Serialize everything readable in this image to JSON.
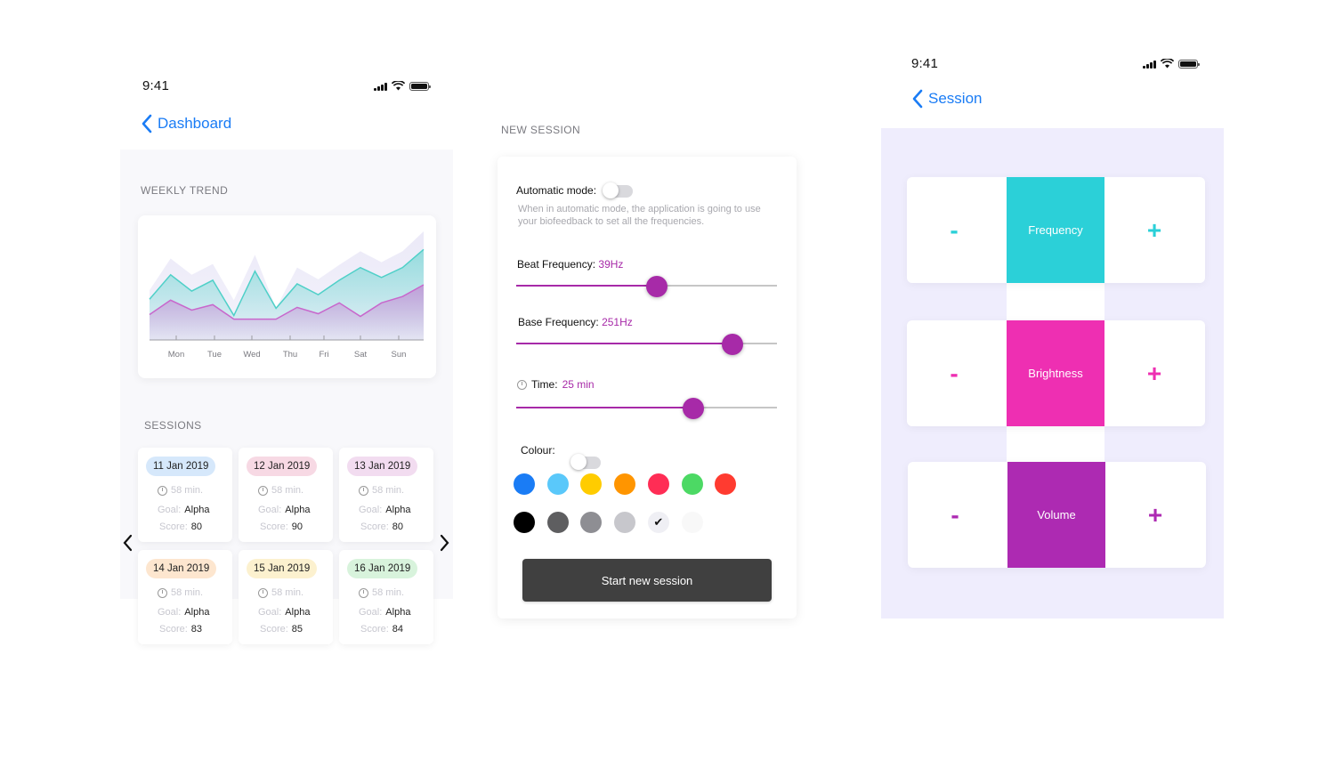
{
  "colors": {
    "accent_blue": "#1a7cf5",
    "purple": "#a72aa8",
    "cyan": "#2bd0d8",
    "magenta": "#ee2fb2",
    "dark_button": "#404040",
    "session_bg": "#efedfd"
  },
  "status": {
    "time": "9:41",
    "icons": [
      "signal-icon",
      "wifi-icon",
      "battery-icon"
    ]
  },
  "dashboard": {
    "back_label": "Dashboard",
    "weekly_title": "WEEKLY TREND",
    "sessions_title": "SESSIONS",
    "goal_label": "Goal:",
    "score_label": "Score:",
    "sessions": [
      {
        "date": "11 Jan 2019",
        "pill": "#d6e8fb",
        "duration": "58 min.",
        "goal": "Alpha",
        "score": "80"
      },
      {
        "date": "12 Jan 2019",
        "pill": "#f7d9e4",
        "duration": "58 min.",
        "goal": "Alpha",
        "score": "90"
      },
      {
        "date": "13 Jan 2019",
        "pill": "#f2dcf0",
        "duration": "58 min.",
        "goal": "Alpha",
        "score": "80"
      },
      {
        "date": "14 Jan 2019",
        "pill": "#fde6cf",
        "duration": "58 min.",
        "goal": "Alpha",
        "score": "83"
      },
      {
        "date": "15 Jan 2019",
        "pill": "#fcf1cf",
        "duration": "58 min.",
        "goal": "Alpha",
        "score": "85"
      },
      {
        "date": "16 Jan 2019",
        "pill": "#d8f3dc",
        "duration": "58 min.",
        "goal": "Alpha",
        "score": "84"
      }
    ]
  },
  "chart_data": {
    "type": "area",
    "categories": [
      "Mon",
      "Tue",
      "Wed",
      "Thu",
      "Fri",
      "Sat",
      "Sun"
    ],
    "x": [
      0,
      1,
      2,
      3,
      4,
      5,
      6,
      7,
      8,
      9,
      10,
      11,
      12,
      13
    ],
    "ylim": [
      0,
      120
    ],
    "grid": false,
    "series": [
      {
        "color": "#e9e7f7",
        "values": [
          55,
          90,
          72,
          84,
          44,
          94,
          35,
          80,
          67,
          83,
          98,
          86,
          98,
          120
        ]
      },
      {
        "color": "#4fd0c8",
        "values": [
          45,
          72,
          54,
          66,
          27,
          76,
          35,
          62,
          50,
          66,
          80,
          69,
          80,
          100
        ]
      },
      {
        "color": "#c867cc",
        "values": [
          28,
          44,
          33,
          39,
          23,
          23,
          23,
          36,
          29,
          41,
          26,
          41,
          48,
          61
        ]
      }
    ]
  },
  "new_session": {
    "title": "NEW SESSION",
    "auto_label": "Automatic mode:",
    "auto_on": false,
    "auto_hint": "When in automatic mode, the application is going to use your biofeedback to set all the frequencies.",
    "beat_label": "Beat Frequency:",
    "beat_value": "39Hz",
    "beat_level": 0.54,
    "base_label": "Base Frequency:",
    "base_value": "251Hz",
    "base_level": 0.83,
    "time_label": "Time:",
    "time_value": "25 min",
    "time_level": 0.68,
    "colour_label": "Colour:",
    "colour_on": false,
    "colours_row1": [
      "#1a7cf5",
      "#5ac8fa",
      "#ffcc00",
      "#ff9500",
      "#ff2d55",
      "#4cd964",
      "#ff3b30"
    ],
    "colours_row2": [
      "#000000",
      "#5e5e60",
      "#8e8e93",
      "#c7c7cc",
      "#efeff4",
      "#f8f8f8"
    ],
    "selected_check": "✔",
    "start_label": "Start new session"
  },
  "session": {
    "back_label": "Session",
    "minus": "-",
    "plus": "+",
    "controls": [
      {
        "label": "Frequency",
        "color": "#2bd0d8"
      },
      {
        "label": "Brightness",
        "color": "#ee2fb2"
      },
      {
        "label": "Volume",
        "color": "#ad2ab2"
      }
    ]
  }
}
